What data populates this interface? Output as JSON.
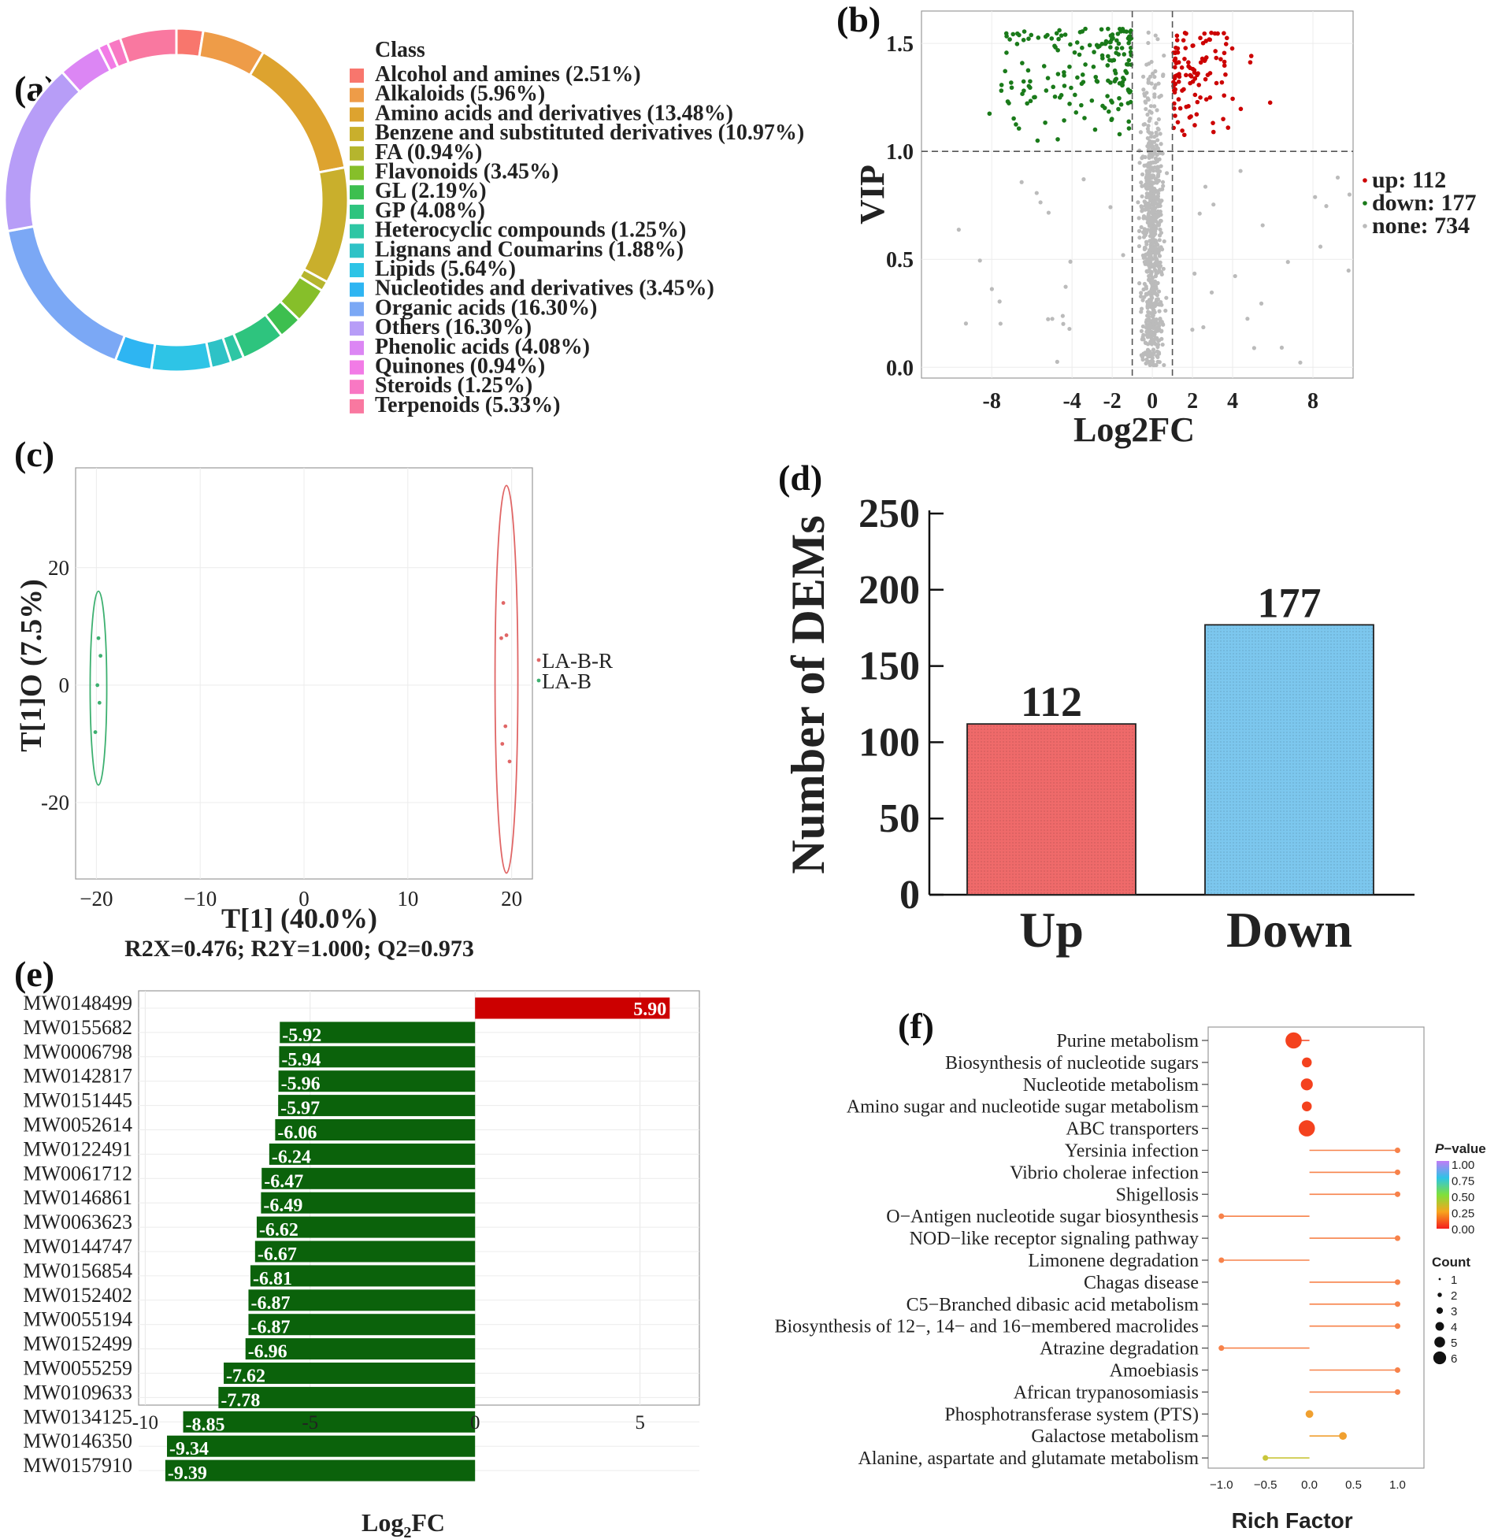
{
  "figure": {
    "panel_labels": [
      "(a)",
      "(b)",
      "(c)",
      "(d)",
      "(e)",
      "(f)"
    ]
  },
  "chart_data": [
    {
      "id": "a",
      "type": "pie",
      "subtype": "donut",
      "legend_title": "Class",
      "slices": [
        {
          "label": "Alcohol and amines (2.51%)",
          "value": 2.51,
          "color": "#F8766D"
        },
        {
          "label": "Alkaloids (5.96%)",
          "value": 5.96,
          "color": "#EE9C48"
        },
        {
          "label": "Amino acids and derivatives (13.48%)",
          "value": 13.48,
          "color": "#DDA32F"
        },
        {
          "label": "Benzene and substituted derivatives (10.97%)",
          "value": 10.97,
          "color": "#C9AF2C"
        },
        {
          "label": "FA (0.94%)",
          "value": 0.94,
          "color": "#B5B52E"
        },
        {
          "label": "Flavonoids (3.45%)",
          "value": 3.45,
          "color": "#86BF2A"
        },
        {
          "label": "GL (2.19%)",
          "value": 2.19,
          "color": "#3DBF4F"
        },
        {
          "label": "GP (4.08%)",
          "value": 4.08,
          "color": "#2EC47E"
        },
        {
          "label": "Heterocyclic compounds (1.25%)",
          "value": 1.25,
          "color": "#2EC6A4"
        },
        {
          "label": "Lignans and Coumarins (1.88%)",
          "value": 1.88,
          "color": "#2EC2C6"
        },
        {
          "label": "Lipids (5.64%)",
          "value": 5.64,
          "color": "#2EC4E6"
        },
        {
          "label": "Nucleotides and derivatives (3.45%)",
          "value": 3.45,
          "color": "#2EB5F2"
        },
        {
          "label": "Organic acids (16.30%)",
          "value": 16.3,
          "color": "#7BA8F5"
        },
        {
          "label": "Others (16.30%)",
          "value": 16.3,
          "color": "#B79DF7"
        },
        {
          "label": "Phenolic acids (4.08%)",
          "value": 4.08,
          "color": "#DC86F4"
        },
        {
          "label": "Quinones (0.94%)",
          "value": 0.94,
          "color": "#F27BE6"
        },
        {
          "label": "Steroids (1.25%)",
          "value": 1.25,
          "color": "#F878C3"
        },
        {
          "label": "Terpenoids (5.33%)",
          "value": 5.33,
          "color": "#F978A0"
        }
      ]
    },
    {
      "id": "b",
      "type": "scatter",
      "title": "",
      "xlabel": "Log2FC",
      "ylabel": "VIP",
      "xlim": [
        -11.5,
        10
      ],
      "ylim": [
        -0.05,
        1.65
      ],
      "xticks": [
        -8,
        -4,
        -2,
        0,
        2,
        4,
        8
      ],
      "xtick_labels": [
        "-8",
        "-4",
        "-2",
        "0",
        "2",
        "4",
        "8"
      ],
      "yticks": [
        0.0,
        0.5,
        1.0,
        1.5
      ],
      "ytick_labels": [
        "0.0",
        "0.5",
        "1.0",
        "1.5"
      ],
      "thresholds": {
        "vip": 1.0,
        "log2fc": [
          -1,
          1
        ]
      },
      "legend": [
        {
          "label": "up: 112",
          "color": "#CC0000"
        },
        {
          "label": "down: 177",
          "color": "#1A7A1A"
        },
        {
          "label": "none: 734",
          "color": "#BBBBBB"
        }
      ],
      "groups": {
        "up": 112,
        "down": 177,
        "none": 734
      },
      "legend_position": "right"
    },
    {
      "id": "c",
      "type": "scatter",
      "subtype": "OPLS-DA score plot",
      "xlabel": "T[1] (40.0%)",
      "ylabel": "T[1]O (7.5%)",
      "footnote": "R2X=0.476; R2Y=1.000; Q2=0.973",
      "xlim": [
        -22,
        22
      ],
      "ylim": [
        -33,
        37
      ],
      "xticks": [
        -20,
        -10,
        0,
        10,
        20
      ],
      "xtick_labels": [
        "−20",
        "−10",
        "0",
        "10",
        "20"
      ],
      "yticks": [
        -20,
        0,
        20
      ],
      "ytick_labels": [
        "-20",
        "0",
        "20"
      ],
      "groups": [
        {
          "name": "LA-B-R",
          "color": "#E06666",
          "points": [
            [
              19.2,
              14
            ],
            [
              19.0,
              8
            ],
            [
              19.5,
              8.5
            ],
            [
              19.1,
              -10
            ],
            [
              19.4,
              -7
            ],
            [
              19.8,
              -13
            ]
          ],
          "ellipse": {
            "cx": 19.5,
            "cy": 1,
            "rx": 1.1,
            "ry": 33
          }
        },
        {
          "name": "LA-B",
          "color": "#3DB070",
          "points": [
            [
              -19.8,
              8
            ],
            [
              -19.6,
              5
            ],
            [
              -19.9,
              0
            ],
            [
              -19.7,
              -3
            ],
            [
              -20.1,
              -8
            ]
          ],
          "ellipse": {
            "cx": -19.8,
            "cy": -0.5,
            "rx": 0.8,
            "ry": 16.5
          }
        }
      ],
      "legend_position": "right"
    },
    {
      "id": "d",
      "type": "bar",
      "title": "",
      "xlabel": "",
      "ylabel": "Number of DEMs",
      "categories": [
        "Up",
        "Down"
      ],
      "values": [
        112,
        177
      ],
      "colors": [
        "#EF6A6A",
        "#7CC7EE"
      ],
      "ylim": [
        0,
        250
      ],
      "yticks": [
        0,
        50,
        100,
        150,
        200,
        250
      ],
      "ytick_labels": [
        "0",
        "50",
        "100",
        "150",
        "200",
        "250"
      ],
      "value_labels": [
        "112",
        "177"
      ]
    },
    {
      "id": "e",
      "type": "bar",
      "orientation": "horizontal",
      "xlabel_main": "Log",
      "xlabel_sub": "2",
      "xlabel_tail": "FC",
      "xlim": [
        -10.2,
        6.8
      ],
      "xticks": [
        -10,
        -5,
        0,
        5
      ],
      "xtick_labels": [
        "-10",
        "-5",
        "0",
        "5"
      ],
      "categories": [
        "MW0148499",
        "MW0155682",
        "MW0006798",
        "MW0142817",
        "MW0151445",
        "MW0052614",
        "MW0122491",
        "MW0061712",
        "MW0146861",
        "MW0063623",
        "MW0144747",
        "MW0156854",
        "MW0152402",
        "MW0055194",
        "MW0152499",
        "MW0055259",
        "MW0109633",
        "MW0134125",
        "MW0146350",
        "MW0157910"
      ],
      "values": [
        5.9,
        -5.92,
        -5.94,
        -5.96,
        -5.97,
        -6.06,
        -6.24,
        -6.47,
        -6.49,
        -6.62,
        -6.67,
        -6.81,
        -6.87,
        -6.87,
        -6.96,
        -7.62,
        -7.78,
        -8.85,
        -9.34,
        -9.39
      ],
      "value_labels": [
        "5.90",
        "-5.92",
        "-5.94",
        "-5.96",
        "-5.97",
        "-6.06",
        "-6.24",
        "-6.47",
        "-6.49",
        "-6.62",
        "-6.67",
        "-6.81",
        "-6.87",
        "-6.87",
        "-6.96",
        "-7.62",
        "-7.78",
        "-8.85",
        "-9.34",
        "-9.39"
      ],
      "colors": {
        "positive": "#CC0000",
        "negative": "#0B620B"
      }
    },
    {
      "id": "f",
      "type": "scatter",
      "subtype": "KEGG enrichment lollipop",
      "xlabel": "Rich Factor",
      "xlim": [
        -1.15,
        1.3
      ],
      "xticks": [
        -1.0,
        -0.5,
        0.0,
        0.5,
        1.0
      ],
      "xtick_labels": [
        "−1.0",
        "−0.5",
        "0.0",
        "0.5",
        "1.0"
      ],
      "pathways": [
        {
          "name": "Purine metabolism",
          "rich": -0.18,
          "count": 6,
          "p": 0.02
        },
        {
          "name": "Biosynthesis of nucleotide sugars",
          "rich": -0.03,
          "count": 3,
          "p": 0.05
        },
        {
          "name": "Nucleotide metabolism",
          "rich": -0.03,
          "count": 4,
          "p": 0.08
        },
        {
          "name": "Amino sugar and nucleotide sugar metabolism",
          "rich": -0.03,
          "count": 3,
          "p": 0.1
        },
        {
          "name": "ABC transporters",
          "rich": -0.03,
          "count": 6,
          "p": 0.12
        },
        {
          "name": "Yersinia infection",
          "rich": 1.0,
          "count": 1,
          "p": 0.25
        },
        {
          "name": "Vibrio cholerae infection",
          "rich": 1.0,
          "count": 1,
          "p": 0.25
        },
        {
          "name": "Shigellosis",
          "rich": 1.0,
          "count": 1,
          "p": 0.25
        },
        {
          "name": "O−Antigen nucleotide sugar biosynthesis",
          "rich": -1.0,
          "count": 1,
          "p": 0.25
        },
        {
          "name": "NOD−like receptor signaling pathway",
          "rich": 1.0,
          "count": 1,
          "p": 0.25
        },
        {
          "name": "Limonene degradation",
          "rich": -1.0,
          "count": 1,
          "p": 0.25
        },
        {
          "name": "Chagas disease",
          "rich": 1.0,
          "count": 1,
          "p": 0.25
        },
        {
          "name": "C5−Branched dibasic acid metabolism",
          "rich": 1.0,
          "count": 1,
          "p": 0.25
        },
        {
          "name": "Biosynthesis of 12−, 14− and 16−membered macrolides",
          "rich": 1.0,
          "count": 1,
          "p": 0.25
        },
        {
          "name": "Atrazine degradation",
          "rich": -1.0,
          "count": 1,
          "p": 0.25
        },
        {
          "name": "Amoebiasis",
          "rich": 1.0,
          "count": 1,
          "p": 0.25
        },
        {
          "name": "African trypanosomiasis",
          "rich": 1.0,
          "count": 1,
          "p": 0.25
        },
        {
          "name": "Phosphotransferase system (PTS)",
          "rich": 0.0,
          "count": 2,
          "p": 0.35
        },
        {
          "name": "Galactose metabolism",
          "rich": 0.38,
          "count": 2,
          "p": 0.4
        },
        {
          "name": "Alanine, aspartate and glutamate metabolism",
          "rich": -0.5,
          "count": 1,
          "p": 0.55
        }
      ],
      "color_legend": {
        "title_italic": "P",
        "title_rest": "−value",
        "ticks": [
          "1.00",
          "0.75",
          "0.50",
          "0.25",
          "0.00"
        ]
      },
      "size_legend": {
        "title": "Count",
        "ticks": [
          "1",
          "2",
          "3",
          "4",
          "5",
          "6"
        ]
      },
      "legend_position": "right"
    }
  ]
}
